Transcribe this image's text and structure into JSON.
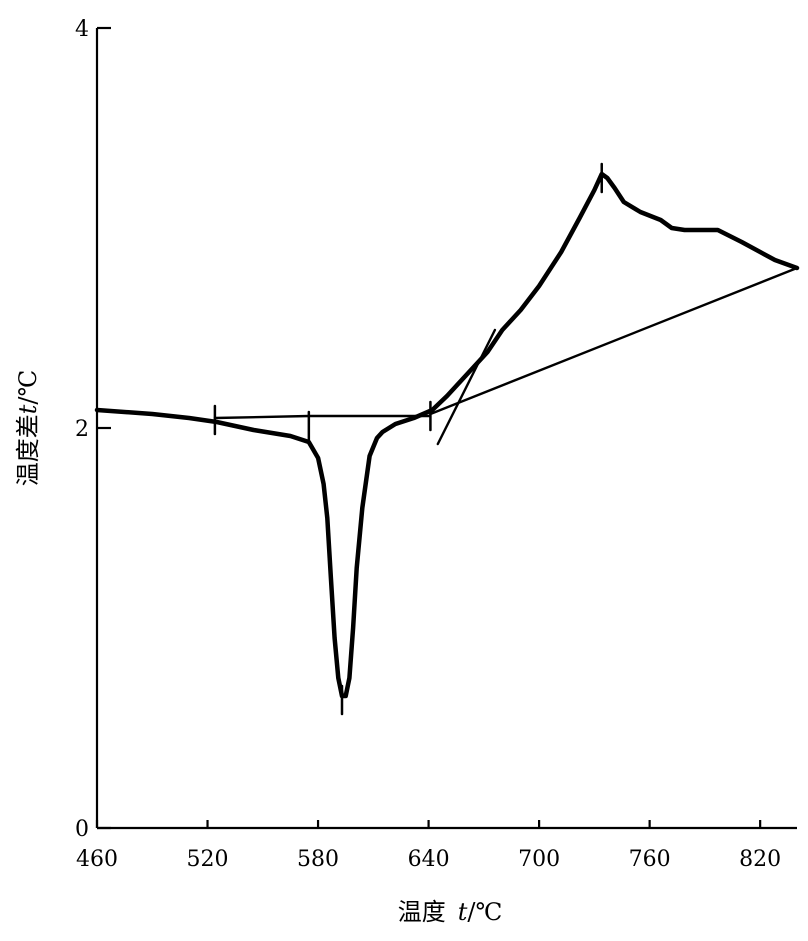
{
  "chart_data": {
    "type": "line",
    "title": "",
    "xlabel_main": "温度",
    "xlabel_var": "t",
    "xlabel_unit": "/℃",
    "ylabel_main": "温度差",
    "ylabel_var": "t",
    "ylabel_unit": "/℃",
    "xlim": [
      460,
      840
    ],
    "ylim": [
      0,
      4
    ],
    "xticks": [
      460,
      520,
      580,
      640,
      700,
      760,
      820
    ],
    "xtick_labels": [
      "460",
      "520",
      "580",
      "640",
      "700",
      "760",
      "820"
    ],
    "yticks": [
      0,
      2,
      4
    ],
    "ytick_labels": [
      "0",
      "2",
      "4"
    ],
    "grid": false,
    "series": [
      {
        "role": "dta_curve",
        "x": [
          460,
          490,
          510,
          525,
          545,
          565,
          575,
          580,
          583,
          585,
          587,
          589,
          591,
          593,
          595,
          597,
          599,
          601,
          604,
          608,
          612,
          615,
          622,
          632,
          642,
          650,
          660,
          672,
          680,
          690,
          700,
          712,
          722,
          730,
          734,
          737,
          741,
          746,
          755,
          766,
          772,
          779,
          789,
          797,
          810,
          828,
          840
        ],
        "y": [
          2.09,
          2.07,
          2.05,
          2.03,
          1.99,
          1.96,
          1.93,
          1.85,
          1.72,
          1.55,
          1.25,
          0.95,
          0.75,
          0.66,
          0.66,
          0.75,
          1.0,
          1.3,
          1.6,
          1.86,
          1.95,
          1.98,
          2.02,
          2.05,
          2.09,
          2.16,
          2.26,
          2.38,
          2.49,
          2.59,
          2.71,
          2.88,
          3.05,
          3.19,
          3.27,
          3.25,
          3.2,
          3.13,
          3.08,
          3.04,
          3.0,
          2.99,
          2.99,
          2.99,
          2.93,
          2.84,
          2.8
        ]
      },
      {
        "role": "baseline",
        "x": [
          524,
          575,
          641
        ],
        "y": [
          2.05,
          2.06,
          2.06
        ]
      },
      {
        "role": "baseline",
        "x": [
          641,
          840
        ],
        "y": [
          2.07,
          2.8
        ]
      },
      {
        "role": "tangent",
        "x": [
          645,
          676
        ],
        "y": [
          1.92,
          2.49
        ]
      }
    ],
    "markers": [
      {
        "x": 524,
        "y": 2.04
      },
      {
        "x": 575,
        "y": 2.01
      },
      {
        "x": 641,
        "y": 2.06
      },
      {
        "x": 593,
        "y": 0.64
      },
      {
        "x": 734,
        "y": 3.25
      }
    ]
  }
}
